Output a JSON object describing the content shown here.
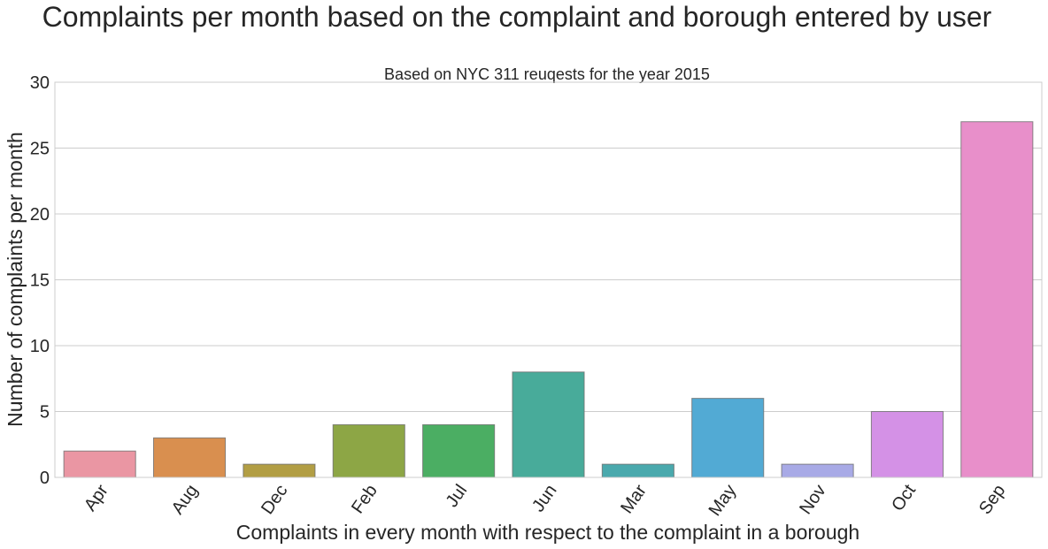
{
  "title": "Complaints per month based on the complaint and borough entered by user",
  "chart_data": {
    "type": "bar",
    "title": "Based on NYC 311 reuqests for the year  2015",
    "xlabel": "Complaints in every month with respect to the complaint in a borough",
    "ylabel": "Number of complaints per month",
    "categories": [
      "Apr",
      "Aug",
      "Dec",
      "Feb",
      "Jul",
      "Jun",
      "Mar",
      "May",
      "Nov",
      "Oct",
      "Sep"
    ],
    "values": [
      2,
      3,
      1,
      4,
      4,
      8,
      1,
      6,
      1,
      5,
      27
    ],
    "colors": [
      "#ea96a3",
      "#d98f4f",
      "#b29e44",
      "#8da645",
      "#4bae63",
      "#48ab9a",
      "#4aa9ad",
      "#52aad4",
      "#a8aae6",
      "#d491e6",
      "#e88fca"
    ],
    "ylim": [
      0,
      30
    ],
    "yticks": [
      0,
      5,
      10,
      15,
      20,
      25,
      30
    ],
    "grid": "horizontal",
    "legend": "none"
  }
}
